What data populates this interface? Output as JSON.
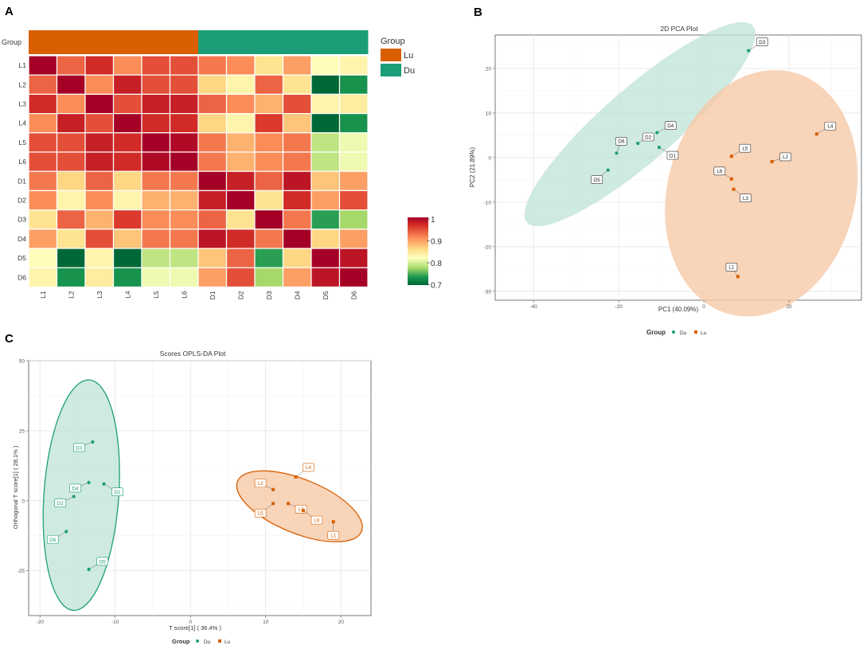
{
  "colors": {
    "lu": "#d95f02",
    "du": "#1b9e77",
    "lu_fill": "#f6c9a8",
    "du_fill": "#bfe3d5",
    "heat_low": "#006837",
    "heat_mid": "#ffffbf",
    "heat_high": "#a50026"
  },
  "panels": {
    "a_label": "A",
    "b_label": "B",
    "c_label": "C"
  },
  "chart_data": [
    {
      "id": "heatmap",
      "type": "heatmap",
      "title": "",
      "group_row_label": "Group",
      "row_labels": [
        "L1",
        "L2",
        "L3",
        "L4",
        "L5",
        "L6",
        "D1",
        "D2",
        "D3",
        "D4",
        "D5",
        "D6"
      ],
      "col_labels": [
        "L1",
        "L2",
        "L3",
        "L4",
        "L5",
        "L6",
        "D1",
        "D2",
        "D3",
        "D4",
        "D5",
        "D6"
      ],
      "col_groups": [
        "Lu",
        "Lu",
        "Lu",
        "Lu",
        "Lu",
        "Lu",
        "Du",
        "Du",
        "Du",
        "Du",
        "Du",
        "Du"
      ],
      "legend_title": "Group",
      "legend_groups": [
        "Lu",
        "Du"
      ],
      "scale_ticks": [
        "1",
        "0.9",
        "0.8",
        "0.7"
      ],
      "scale_range": [
        0.7,
        1.0
      ],
      "values": [
        [
          1.0,
          0.93,
          0.96,
          0.91,
          0.94,
          0.94,
          0.92,
          0.91,
          0.86,
          0.9,
          0.83,
          0.84
        ],
        [
          0.93,
          1.0,
          0.91,
          0.97,
          0.94,
          0.94,
          0.87,
          0.84,
          0.93,
          0.86,
          0.7,
          0.74
        ],
        [
          0.96,
          0.91,
          1.0,
          0.94,
          0.97,
          0.97,
          0.93,
          0.91,
          0.89,
          0.94,
          0.84,
          0.85
        ],
        [
          0.91,
          0.97,
          0.94,
          1.0,
          0.96,
          0.96,
          0.87,
          0.84,
          0.95,
          0.88,
          0.7,
          0.74
        ],
        [
          0.94,
          0.94,
          0.97,
          0.96,
          1.0,
          0.99,
          0.92,
          0.89,
          0.91,
          0.92,
          0.8,
          0.82
        ],
        [
          0.94,
          0.94,
          0.97,
          0.96,
          0.99,
          1.0,
          0.92,
          0.89,
          0.91,
          0.92,
          0.8,
          0.82
        ],
        [
          0.92,
          0.87,
          0.93,
          0.87,
          0.92,
          0.92,
          1.0,
          0.97,
          0.93,
          0.98,
          0.88,
          0.9
        ],
        [
          0.91,
          0.84,
          0.91,
          0.84,
          0.89,
          0.89,
          0.97,
          1.0,
          0.86,
          0.96,
          0.9,
          0.94
        ],
        [
          0.86,
          0.93,
          0.89,
          0.95,
          0.91,
          0.91,
          0.93,
          0.86,
          1.0,
          0.92,
          0.75,
          0.79
        ],
        [
          0.9,
          0.86,
          0.94,
          0.88,
          0.92,
          0.92,
          0.98,
          0.96,
          0.92,
          1.0,
          0.87,
          0.9
        ],
        [
          0.83,
          0.7,
          0.84,
          0.7,
          0.8,
          0.8,
          0.88,
          0.93,
          0.75,
          0.87,
          1.0,
          0.98
        ],
        [
          0.84,
          0.74,
          0.85,
          0.74,
          0.82,
          0.82,
          0.9,
          0.94,
          0.79,
          0.9,
          0.98,
          1.0
        ]
      ]
    },
    {
      "id": "pca",
      "type": "scatter",
      "title": "2D PCA Plot",
      "xlabel": "PC1 (40.09%)",
      "ylabel": "PC2 (21.89%)",
      "xlim": [
        -49,
        37
      ],
      "ylim": [
        -32,
        27.5
      ],
      "xticks": [
        -40,
        -20,
        0,
        20
      ],
      "yticks": [
        -30,
        -20,
        -10,
        0,
        10,
        20
      ],
      "legend_title": "Group",
      "legend_entries": [
        "Du",
        "Lu"
      ],
      "series": [
        {
          "name": "Du",
          "points": [
            {
              "label": "D3",
              "x": 10.5,
              "y": 24.0
            },
            {
              "label": "D4",
              "x": -11.0,
              "y": 5.6
            },
            {
              "label": "D2",
              "x": -15.5,
              "y": 3.2
            },
            {
              "label": "D6",
              "x": -20.5,
              "y": 1.0
            },
            {
              "label": "D1",
              "x": -10.5,
              "y": 2.3
            },
            {
              "label": "D5",
              "x": -22.5,
              "y": -2.8
            }
          ]
        },
        {
          "name": "Lu",
          "points": [
            {
              "label": "L4",
              "x": 26.5,
              "y": 5.3
            },
            {
              "label": "L5",
              "x": 6.5,
              "y": 0.3
            },
            {
              "label": "L2",
              "x": 16.0,
              "y": -0.9
            },
            {
              "label": "L6",
              "x": 6.5,
              "y": -4.8
            },
            {
              "label": "L3",
              "x": 7.0,
              "y": -7.1
            },
            {
              "label": "L1",
              "x": 8.0,
              "y": -26.7
            }
          ]
        }
      ]
    },
    {
      "id": "oplsda",
      "type": "scatter",
      "title": "Scores OPLS-DA Plot",
      "xlabel": "T score[1] ( 36.4% )",
      "ylabel": "Orthogonal T score[1] ( 28.1% )",
      "xlim": [
        -21.5,
        24
      ],
      "ylim": [
        -41,
        50
      ],
      "xticks": [
        -20,
        -10,
        0,
        10,
        20
      ],
      "yticks": [
        -25,
        0,
        25,
        50
      ],
      "legend_title": "Group",
      "legend_entries": [
        "Du",
        "Lu"
      ],
      "series": [
        {
          "name": "Du",
          "points": [
            {
              "label": "D3",
              "x": -13.0,
              "y": 21.0
            },
            {
              "label": "D4",
              "x": -13.5,
              "y": 6.5
            },
            {
              "label": "D1",
              "x": -11.5,
              "y": 6.0
            },
            {
              "label": "D2",
              "x": -15.5,
              "y": 1.5
            },
            {
              "label": "D6",
              "x": -16.5,
              "y": -11.0
            },
            {
              "label": "D5",
              "x": -13.5,
              "y": -24.5
            }
          ]
        },
        {
          "name": "Lu",
          "points": [
            {
              "label": "L4",
              "x": 14.0,
              "y": 8.5
            },
            {
              "label": "L2",
              "x": 11.0,
              "y": 4.0
            },
            {
              "label": "L3",
              "x": 13.0,
              "y": -1.0
            },
            {
              "label": "L5",
              "x": 11.0,
              "y": -1.0
            },
            {
              "label": "L6",
              "x": 15.0,
              "y": -3.5
            },
            {
              "label": "L1",
              "x": 19.0,
              "y": -7.5
            }
          ]
        }
      ]
    }
  ]
}
